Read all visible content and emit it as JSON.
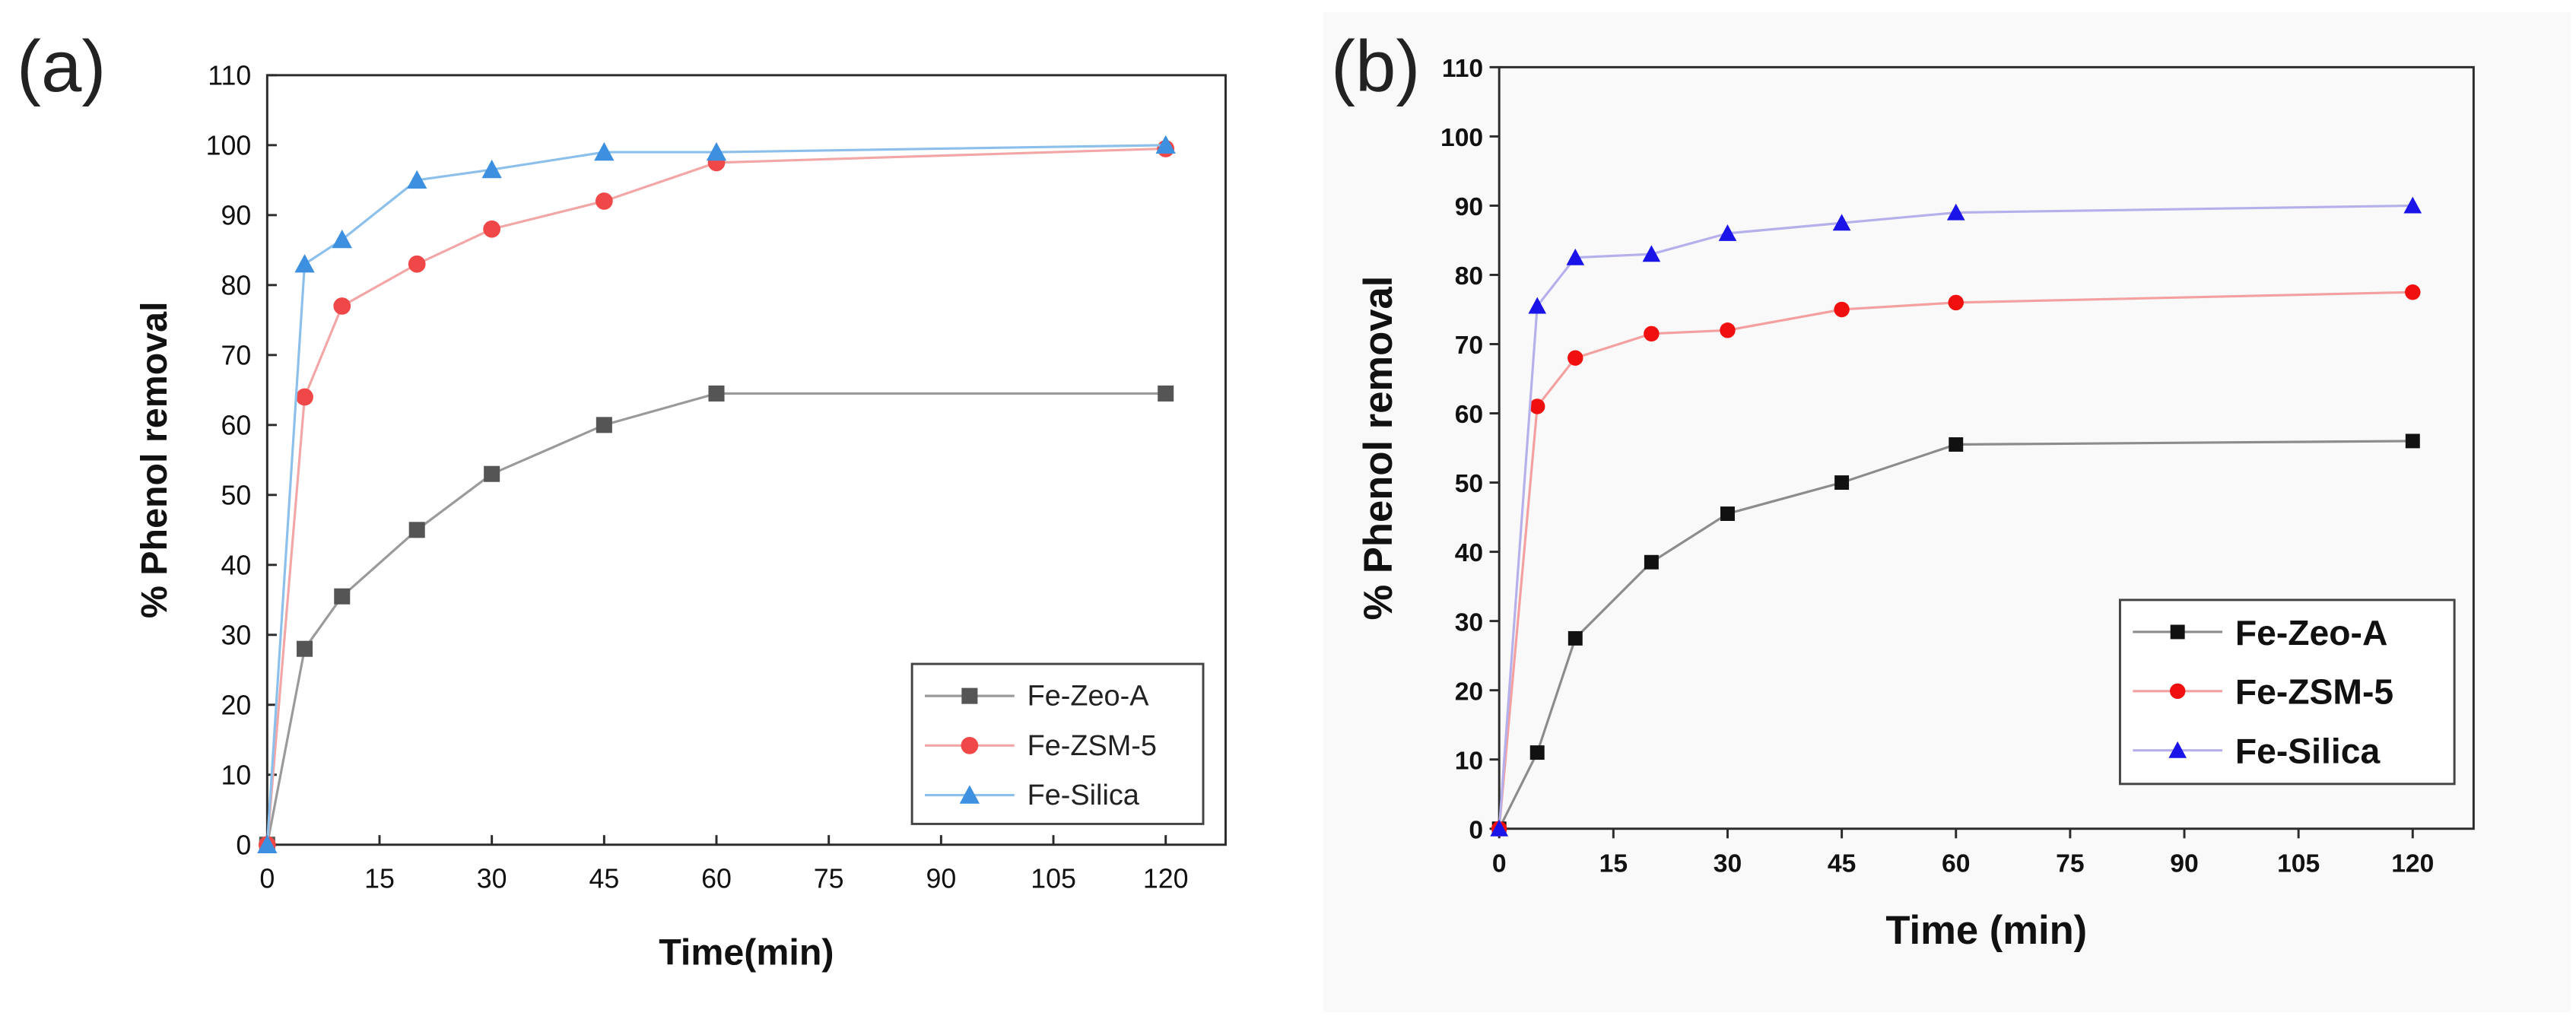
{
  "colors": {
    "a": {
      "Fe-Zeo-A": {
        "line": "#9a9a9a",
        "marker": "#555555"
      },
      "Fe-ZSM-5": {
        "line": "#f3a6a6",
        "marker": "#f04848"
      },
      "Fe-Silica": {
        "line": "#8cc0ec",
        "marker": "#3d8fdf"
      }
    },
    "b": {
      "Fe-Zeo-A": {
        "line": "#8c8c8c",
        "marker": "#111111"
      },
      "Fe-ZSM-5": {
        "line": "#f4a0a0",
        "marker": "#f01010"
      },
      "Fe-Silica": {
        "line": "#b5b0ec",
        "marker": "#1a14e8"
      }
    }
  },
  "chart_data": [
    {
      "panel": "(a)",
      "type": "line",
      "title": "",
      "xlabel": "Time(min)",
      "ylabel": "% Phenol removal",
      "x_ticks": [
        "0",
        "15",
        "30",
        "45",
        "60",
        "75",
        "90",
        "105",
        "120"
      ],
      "y_ticks": [
        "0",
        "10",
        "20",
        "30",
        "40",
        "50",
        "60",
        "70",
        "80",
        "90",
        "100",
        "110"
      ],
      "xlim": [
        0,
        128
      ],
      "ylim": [
        0,
        110
      ],
      "grid": false,
      "legend_position": "bottom-right",
      "series": [
        {
          "name": "Fe-Zeo-A",
          "marker": "square",
          "x": [
            0,
            5,
            10,
            20,
            30,
            45,
            60,
            120
          ],
          "y": [
            0,
            28,
            35.5,
            45,
            53,
            60,
            64.5,
            64.5
          ]
        },
        {
          "name": "Fe-ZSM-5",
          "marker": "circle",
          "x": [
            0,
            5,
            10,
            20,
            30,
            45,
            60,
            120
          ],
          "y": [
            0,
            64,
            77,
            83,
            88,
            92,
            97.5,
            99.5
          ]
        },
        {
          "name": "Fe-Silica",
          "marker": "triangle",
          "x": [
            0,
            5,
            10,
            20,
            30,
            45,
            60,
            120
          ],
          "y": [
            0,
            83,
            86.5,
            95,
            96.5,
            99,
            99,
            100
          ]
        }
      ]
    },
    {
      "panel": "(b)",
      "type": "line",
      "title": "",
      "xlabel": "Time (min)",
      "ylabel": "% Phenol removal",
      "x_ticks": [
        "0",
        "15",
        "30",
        "45",
        "60",
        "75",
        "90",
        "105",
        "120"
      ],
      "y_ticks": [
        "0",
        "10",
        "20",
        "30",
        "40",
        "50",
        "60",
        "70",
        "80",
        "90",
        "100",
        "110"
      ],
      "xlim": [
        0,
        128
      ],
      "ylim": [
        0,
        110
      ],
      "grid": false,
      "legend_position": "bottom-right",
      "series": [
        {
          "name": "Fe-Zeo-A",
          "marker": "square",
          "x": [
            0,
            5,
            10,
            20,
            30,
            45,
            60,
            120
          ],
          "y": [
            0,
            11,
            27.5,
            38.5,
            45.5,
            50,
            55.5,
            56
          ]
        },
        {
          "name": "Fe-ZSM-5",
          "marker": "circle",
          "x": [
            0,
            5,
            10,
            20,
            30,
            45,
            60,
            120
          ],
          "y": [
            0,
            61,
            68,
            71.5,
            72,
            75,
            76,
            77.5
          ]
        },
        {
          "name": "Fe-Silica",
          "marker": "triangle",
          "x": [
            0,
            5,
            10,
            20,
            30,
            45,
            60,
            120
          ],
          "y": [
            0,
            75.5,
            82.5,
            83,
            86,
            87.5,
            89,
            90
          ]
        }
      ]
    }
  ]
}
